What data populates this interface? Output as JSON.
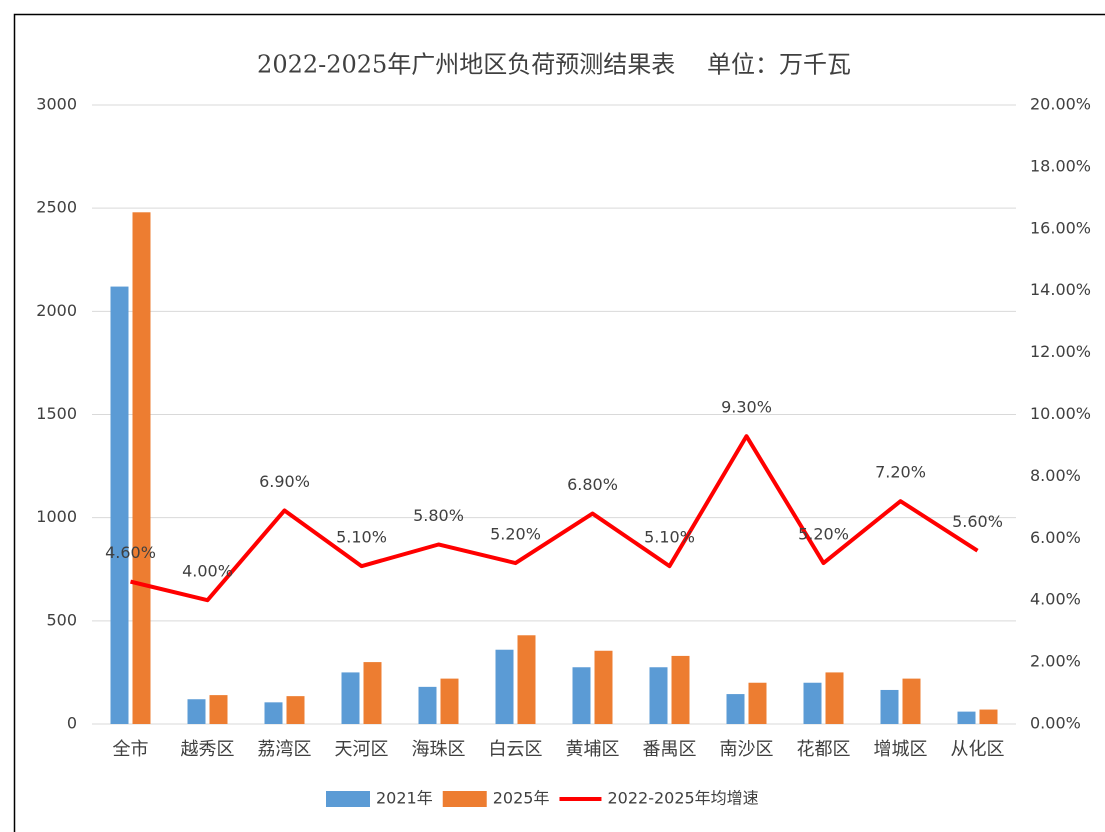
{
  "chart_data": {
    "type": "bar-line",
    "title": "2022-2025年广州地区负荷预测结果表　 单位：万千瓦",
    "categories": [
      "全市",
      "越秀区",
      "荔湾区",
      "天河区",
      "海珠区",
      "白云区",
      "黄埔区",
      "番禺区",
      "南沙区",
      "花都区",
      "增城区",
      "从化区"
    ],
    "series": [
      {
        "name": "2021年",
        "type": "bar",
        "color": "#5b9bd5",
        "values": [
          2120,
          120,
          105,
          250,
          180,
          360,
          275,
          275,
          145,
          200,
          165,
          60
        ]
      },
      {
        "name": "2025年",
        "type": "bar",
        "color": "#ed7d31",
        "values": [
          2480,
          140,
          135,
          300,
          220,
          430,
          355,
          330,
          200,
          250,
          220,
          70
        ]
      },
      {
        "name": "2022-2025年均增速",
        "type": "line",
        "axis": "y2",
        "color": "#ff0000",
        "values": [
          4.6,
          4.0,
          6.9,
          5.1,
          5.8,
          5.2,
          6.8,
          5.1,
          9.3,
          5.2,
          7.2,
          5.6
        ],
        "value_labels": [
          "4.60%",
          "4.00%",
          "6.90%",
          "5.10%",
          "5.80%",
          "5.20%",
          "6.80%",
          "5.10%",
          "9.30%",
          "5.20%",
          "7.20%",
          "5.60%"
        ]
      }
    ],
    "ylim": [
      0,
      3000
    ],
    "yticks": [
      0,
      500,
      1000,
      1500,
      2000,
      2500,
      3000
    ],
    "y2lim": [
      0,
      20
    ],
    "y2ticks": [
      {
        "value": 0,
        "label": "0.00%"
      },
      {
        "value": 2,
        "label": "2.00%"
      },
      {
        "value": 4,
        "label": "4.00%"
      },
      {
        "value": 6,
        "label": "6.00%"
      },
      {
        "value": 8,
        "label": "8.00%"
      },
      {
        "value": 10,
        "label": "10.00%"
      },
      {
        "value": 12,
        "label": "12.00%"
      },
      {
        "value": 14,
        "label": "14.00%"
      },
      {
        "value": 16,
        "label": "16.00%"
      },
      {
        "value": 18,
        "label": "18.00%"
      },
      {
        "value": 20,
        "label": "20.00%"
      }
    ],
    "grid": true,
    "legend": "bottom"
  }
}
